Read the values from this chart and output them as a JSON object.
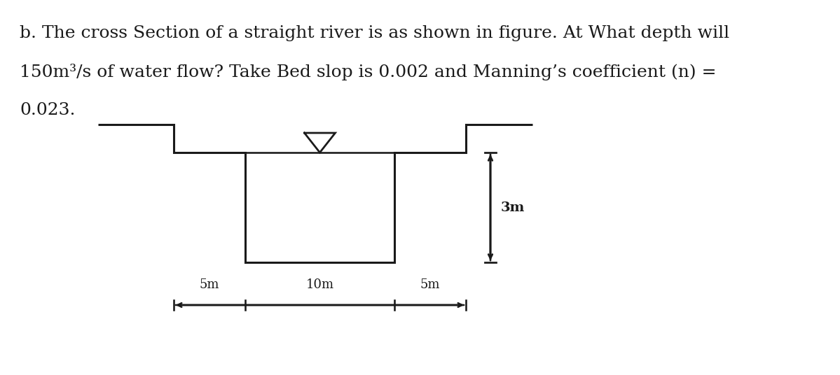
{
  "title_line1": "b. The cross Section of a straight river is as shown in figure. At What depth will",
  "title_line2": "150m³/s of water flow? Take Bed slop is 0.002 and Manning’s coefficient (n) =",
  "title_line3": "0.023.",
  "title_fontsize": 18,
  "bg_color": "#ffffff",
  "line_color": "#1a1a1a",
  "line_width": 2.2,
  "label_5m_left": "5m",
  "label_10m": "10m",
  "label_5m_right": "5m",
  "label_3m": "3m",
  "label_fontsize": 13
}
